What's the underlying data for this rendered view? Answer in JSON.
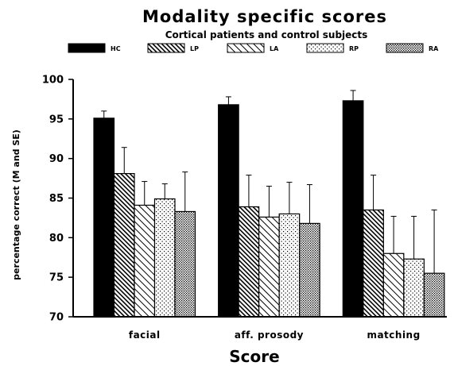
{
  "chart_data": {
    "type": "bar",
    "title": "Modality specific scores",
    "subtitle": "Cortical patients and control subjects",
    "xlabel": "Score",
    "ylabel": "percentage correct (M and SE)",
    "categories": [
      "facial",
      "aff. prosody",
      "matching"
    ],
    "ylim": [
      70,
      100
    ],
    "yticks": [
      70,
      75,
      80,
      85,
      90,
      95,
      100
    ],
    "grid": false,
    "legend_position": "top",
    "series": [
      {
        "name": "HC",
        "pattern": "solid",
        "values": [
          95.1,
          96.8,
          97.3
        ],
        "errors": [
          0.9,
          1.0,
          1.3
        ]
      },
      {
        "name": "LP",
        "pattern": "diagonal-dense",
        "values": [
          88.1,
          83.9,
          83.5
        ],
        "errors": [
          3.3,
          4.0,
          4.4
        ]
      },
      {
        "name": "LA",
        "pattern": "diagonal-light",
        "values": [
          84.1,
          82.6,
          78.0
        ],
        "errors": [
          3.0,
          3.9,
          4.7
        ]
      },
      {
        "name": "RP",
        "pattern": "dots-sparse",
        "values": [
          84.9,
          83.0,
          77.3
        ],
        "errors": [
          1.9,
          4.0,
          5.4
        ]
      },
      {
        "name": "RA",
        "pattern": "dots-dense",
        "values": [
          83.3,
          81.8,
          75.5
        ],
        "errors": [
          5.0,
          4.9,
          8.0
        ]
      }
    ]
  }
}
